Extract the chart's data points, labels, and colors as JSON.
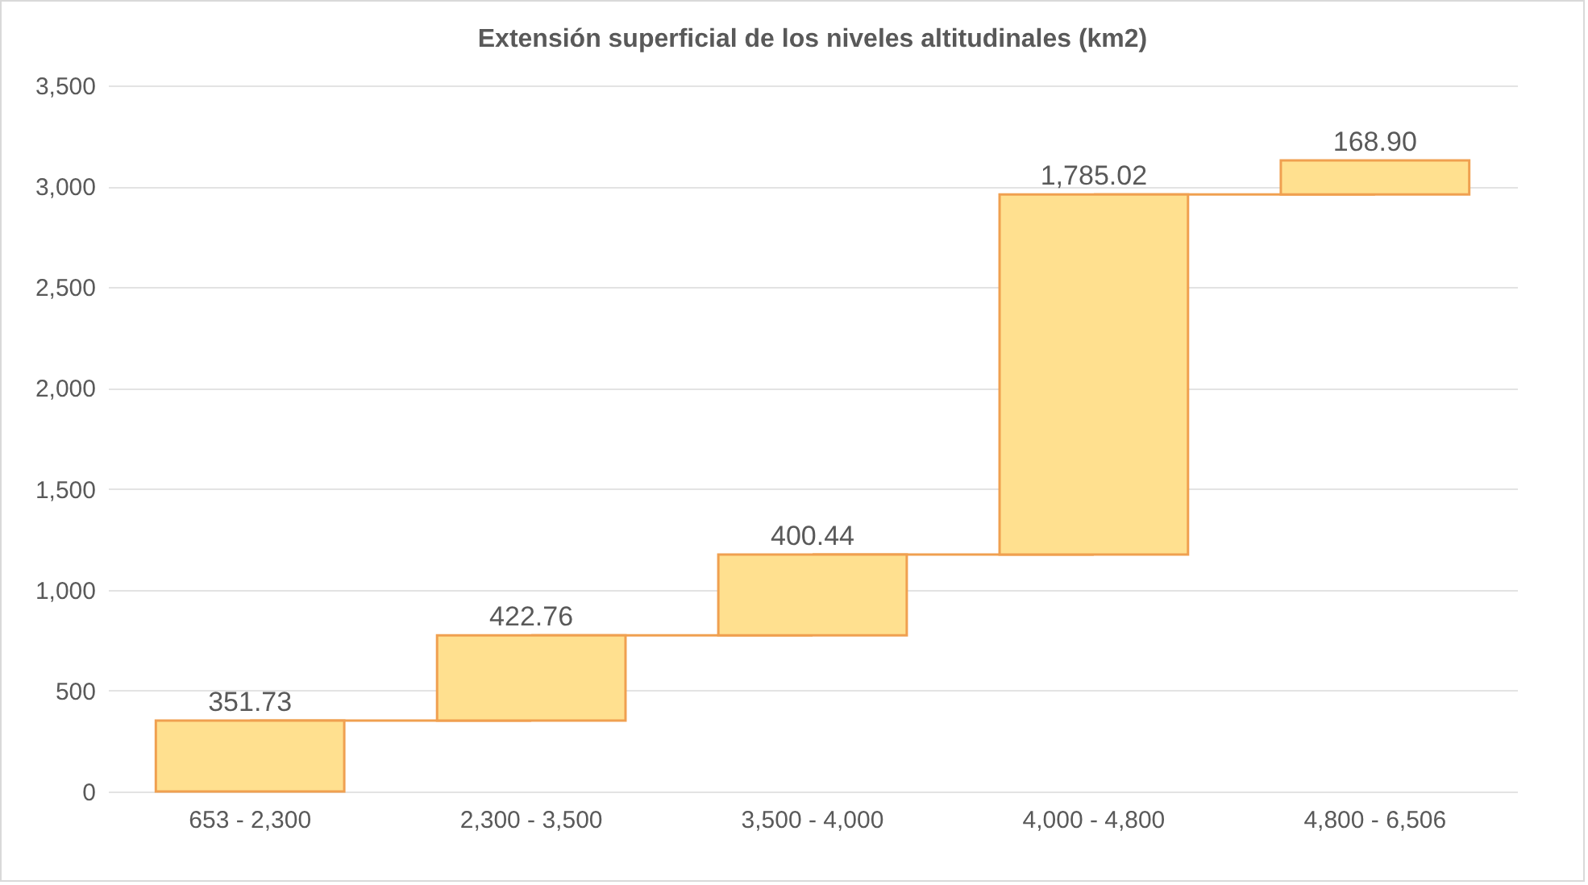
{
  "chart_data": {
    "type": "bar",
    "title": "Extensión superficial de los niveles altitudinales (km2)",
    "categories": [
      "653 - 2,300",
      "2,300 - 3,500",
      "3,500 - 4,000",
      "4,000 - 4,800",
      "4,800 - 6,506"
    ],
    "values": [
      351.73,
      422.76,
      400.44,
      1785.02,
      168.9
    ],
    "value_labels": [
      "351.73",
      "422.76",
      "400.44",
      "1,785.02",
      "168.90"
    ],
    "base": [
      0,
      351.73,
      774.49,
      1174.93,
      2959.95
    ],
    "color": "#ffe08f",
    "ylim": [
      0,
      3500
    ],
    "yticks": [
      0,
      {
        "value": 500,
        "label": "500"
      },
      {
        "value": 1000,
        "label": "1,000"
      },
      {
        "value": 1500,
        "label": "1,500"
      },
      {
        "value": 2000,
        "label": "2,000"
      },
      {
        "value": 2500,
        "label": "2,500"
      },
      {
        "value": 3000,
        "label": "3,000"
      },
      {
        "value": 3500,
        "label": "3,500"
      }
    ],
    "grid": "y"
  }
}
